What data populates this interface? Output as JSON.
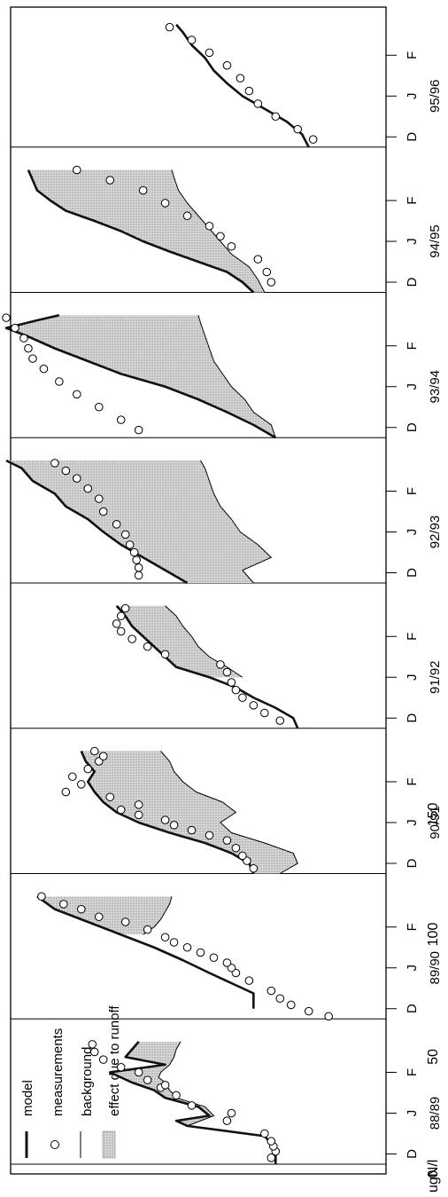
{
  "chart_data": {
    "type": "line",
    "orientation": "rotated-90-cw",
    "ylabel": "ugN/l",
    "ylim": [
      0,
      170
    ],
    "yticks": [
      0,
      50,
      100,
      150
    ],
    "month_ticks": [
      "D",
      "J",
      "F"
    ],
    "legend": {
      "model": "model",
      "measurements": "measurements",
      "background": "background",
      "runoff": "effect due to runoff"
    },
    "colors": {
      "model": "#111111",
      "shade": "#c8c8c8",
      "frame": "#000000"
    },
    "seasons": [
      {
        "label": "88/89",
        "model": [
          [
            0.0,
            50
          ],
          [
            0.08,
            50
          ],
          [
            0.16,
            52
          ],
          [
            0.22,
            55
          ],
          [
            0.3,
            90
          ],
          [
            0.34,
            95
          ],
          [
            0.38,
            80
          ],
          [
            0.45,
            85
          ],
          [
            0.52,
            100
          ],
          [
            0.58,
            105
          ],
          [
            0.64,
            115
          ],
          [
            0.68,
            120
          ],
          [
            0.72,
            125
          ],
          [
            0.78,
            100
          ],
          [
            0.84,
            118
          ],
          [
            0.9,
            115
          ],
          [
            0.96,
            112
          ]
        ],
        "background": [
          [
            0.3,
            90
          ],
          [
            0.38,
            78
          ],
          [
            0.45,
            82
          ],
          [
            0.52,
            95
          ],
          [
            0.58,
            98
          ],
          [
            0.64,
            100
          ],
          [
            0.68,
            103
          ],
          [
            0.72,
            102
          ],
          [
            0.78,
            98
          ],
          [
            0.84,
            96
          ],
          [
            0.9,
            95
          ],
          [
            0.96,
            93
          ]
        ],
        "measurements": [
          [
            0.05,
            52
          ],
          [
            0.1,
            50
          ],
          [
            0.14,
            51
          ],
          [
            0.18,
            52
          ],
          [
            0.24,
            55
          ],
          [
            0.34,
            72
          ],
          [
            0.4,
            70
          ],
          [
            0.46,
            88
          ],
          [
            0.54,
            95
          ],
          [
            0.6,
            102
          ],
          [
            0.62,
            100
          ],
          [
            0.66,
            108
          ],
          [
            0.72,
            112
          ],
          [
            0.76,
            120
          ],
          [
            0.82,
            128
          ],
          [
            0.88,
            132
          ],
          [
            0.94,
            133
          ]
        ]
      },
      {
        "label": "89/90",
        "model": [
          [
            0.08,
            60
          ],
          [
            0.14,
            60
          ],
          [
            0.2,
            60
          ],
          [
            0.28,
            70
          ],
          [
            0.36,
            80
          ],
          [
            0.46,
            92
          ],
          [
            0.56,
            105
          ],
          [
            0.66,
            120
          ],
          [
            0.76,
            135
          ],
          [
            0.86,
            150
          ],
          [
            0.96,
            158
          ]
        ],
        "background": [
          [
            0.66,
            110
          ],
          [
            0.72,
            105
          ],
          [
            0.78,
            102
          ],
          [
            0.84,
            100
          ],
          [
            0.9,
            98
          ],
          [
            0.96,
            97
          ]
        ],
        "measurements": [
          [
            0.02,
            26
          ],
          [
            0.06,
            35
          ],
          [
            0.11,
            43
          ],
          [
            0.16,
            48
          ],
          [
            0.22,
            52
          ],
          [
            0.3,
            62
          ],
          [
            0.36,
            68
          ],
          [
            0.4,
            70
          ],
          [
            0.44,
            72
          ],
          [
            0.48,
            78
          ],
          [
            0.52,
            84
          ],
          [
            0.56,
            90
          ],
          [
            0.6,
            96
          ],
          [
            0.64,
            100
          ],
          [
            0.7,
            108
          ],
          [
            0.76,
            118
          ],
          [
            0.8,
            130
          ],
          [
            0.86,
            138
          ],
          [
            0.9,
            146
          ],
          [
            0.96,
            156
          ]
        ]
      },
      {
        "label": "90/91",
        "model": [
          [
            0.0,
            60
          ],
          [
            0.08,
            62
          ],
          [
            0.16,
            70
          ],
          [
            0.24,
            82
          ],
          [
            0.32,
            98
          ],
          [
            0.4,
            112
          ],
          [
            0.48,
            122
          ],
          [
            0.56,
            128
          ],
          [
            0.64,
            132
          ],
          [
            0.72,
            135
          ],
          [
            0.8,
            132
          ],
          [
            0.88,
            136
          ],
          [
            0.96,
            138
          ]
        ],
        "background": [
          [
            0.0,
            48
          ],
          [
            0.08,
            40
          ],
          [
            0.16,
            42
          ],
          [
            0.24,
            55
          ],
          [
            0.32,
            70
          ],
          [
            0.4,
            75
          ],
          [
            0.48,
            68
          ],
          [
            0.56,
            74
          ],
          [
            0.64,
            86
          ],
          [
            0.72,
            92
          ],
          [
            0.8,
            96
          ],
          [
            0.88,
            98
          ],
          [
            0.96,
            102
          ]
        ],
        "measurements": [
          [
            0.04,
            60
          ],
          [
            0.1,
            63
          ],
          [
            0.14,
            65
          ],
          [
            0.2,
            68
          ],
          [
            0.26,
            72
          ],
          [
            0.3,
            80
          ],
          [
            0.34,
            88
          ],
          [
            0.38,
            96
          ],
          [
            0.42,
            100
          ],
          [
            0.46,
            112
          ],
          [
            0.5,
            120
          ],
          [
            0.54,
            112
          ],
          [
            0.6,
            125
          ],
          [
            0.64,
            145
          ],
          [
            0.7,
            138
          ],
          [
            0.76,
            142
          ],
          [
            0.82,
            135
          ],
          [
            0.88,
            130
          ],
          [
            0.92,
            128
          ],
          [
            0.96,
            132
          ]
        ]
      },
      {
        "label": "91/92",
        "model": [
          [
            0.0,
            40
          ],
          [
            0.08,
            42
          ],
          [
            0.16,
            50
          ],
          [
            0.24,
            60
          ],
          [
            0.32,
            68
          ],
          [
            0.4,
            80
          ],
          [
            0.48,
            95
          ],
          [
            0.56,
            100
          ],
          [
            0.64,
            105
          ],
          [
            0.72,
            110
          ],
          [
            0.8,
            115
          ],
          [
            0.88,
            118
          ],
          [
            0.96,
            122
          ]
        ],
        "background": [
          [
            0.4,
            65
          ],
          [
            0.48,
            72
          ],
          [
            0.56,
            80
          ],
          [
            0.64,
            85
          ],
          [
            0.72,
            88
          ],
          [
            0.8,
            92
          ],
          [
            0.88,
            95
          ],
          [
            0.96,
            100
          ]
        ],
        "measurements": [
          [
            0.06,
            48
          ],
          [
            0.12,
            55
          ],
          [
            0.18,
            60
          ],
          [
            0.24,
            65
          ],
          [
            0.3,
            68
          ],
          [
            0.36,
            70
          ],
          [
            0.44,
            72
          ],
          [
            0.5,
            75
          ],
          [
            0.58,
            100
          ],
          [
            0.64,
            108
          ],
          [
            0.7,
            115
          ],
          [
            0.76,
            120
          ],
          [
            0.82,
            122
          ],
          [
            0.88,
            120
          ],
          [
            0.94,
            118
          ]
        ]
      },
      {
        "label": "92/93",
        "model": [
          [
            0.0,
            90
          ],
          [
            0.1,
            100
          ],
          [
            0.2,
            110
          ],
          [
            0.3,
            120
          ],
          [
            0.4,
            128
          ],
          [
            0.5,
            135
          ],
          [
            0.6,
            145
          ],
          [
            0.7,
            150
          ],
          [
            0.8,
            160
          ],
          [
            0.9,
            165
          ],
          [
            0.96,
            172
          ]
        ],
        "background": [
          [
            0.0,
            60
          ],
          [
            0.1,
            65
          ],
          [
            0.2,
            52
          ],
          [
            0.3,
            58
          ],
          [
            0.4,
            66
          ],
          [
            0.5,
            70
          ],
          [
            0.6,
            75
          ],
          [
            0.7,
            78
          ],
          [
            0.8,
            80
          ],
          [
            0.9,
            82
          ],
          [
            0.96,
            84
          ]
        ],
        "measurements": [
          [
            0.06,
            112
          ],
          [
            0.12,
            112
          ],
          [
            0.18,
            113
          ],
          [
            0.24,
            114
          ],
          [
            0.3,
            116
          ],
          [
            0.38,
            118
          ],
          [
            0.46,
            122
          ],
          [
            0.56,
            128
          ],
          [
            0.66,
            130
          ],
          [
            0.74,
            135
          ],
          [
            0.82,
            140
          ],
          [
            0.88,
            145
          ],
          [
            0.94,
            150
          ]
        ]
      },
      {
        "label": "93/94",
        "model": [
          [
            0.0,
            50
          ],
          [
            0.1,
            60
          ],
          [
            0.2,
            72
          ],
          [
            0.3,
            85
          ],
          [
            0.4,
            100
          ],
          [
            0.5,
            120
          ],
          [
            0.6,
            135
          ],
          [
            0.7,
            150
          ],
          [
            0.8,
            163
          ],
          [
            0.86,
            172
          ],
          [
            0.92,
            158
          ],
          [
            0.96,
            148
          ]
        ],
        "background": [
          [
            0.0,
            50
          ],
          [
            0.1,
            52
          ],
          [
            0.2,
            60
          ],
          [
            0.3,
            64
          ],
          [
            0.4,
            70
          ],
          [
            0.5,
            74
          ],
          [
            0.6,
            78
          ],
          [
            0.7,
            80
          ],
          [
            0.8,
            82
          ],
          [
            0.9,
            84
          ],
          [
            0.96,
            85
          ]
        ],
        "measurements": [
          [
            0.06,
            112
          ],
          [
            0.14,
            120
          ],
          [
            0.24,
            130
          ],
          [
            0.34,
            140
          ],
          [
            0.44,
            148
          ],
          [
            0.54,
            155
          ],
          [
            0.62,
            160
          ],
          [
            0.7,
            162
          ],
          [
            0.78,
            164
          ],
          [
            0.86,
            168
          ],
          [
            0.94,
            172
          ]
        ]
      },
      {
        "label": "94/95",
        "model": [
          [
            0.0,
            60
          ],
          [
            0.08,
            65
          ],
          [
            0.16,
            72
          ],
          [
            0.24,
            85
          ],
          [
            0.32,
            98
          ],
          [
            0.4,
            110
          ],
          [
            0.48,
            120
          ],
          [
            0.56,
            132
          ],
          [
            0.64,
            145
          ],
          [
            0.72,
            152
          ],
          [
            0.8,
            158
          ],
          [
            0.88,
            160
          ],
          [
            0.96,
            162
          ]
        ],
        "background": [
          [
            0.0,
            55
          ],
          [
            0.1,
            58
          ],
          [
            0.2,
            62
          ],
          [
            0.3,
            70
          ],
          [
            0.4,
            75
          ],
          [
            0.5,
            80
          ],
          [
            0.6,
            85
          ],
          [
            0.7,
            90
          ],
          [
            0.8,
            94
          ],
          [
            0.9,
            96
          ],
          [
            0.96,
            97
          ]
        ],
        "measurements": [
          [
            0.08,
            52
          ],
          [
            0.16,
            54
          ],
          [
            0.26,
            58
          ],
          [
            0.36,
            70
          ],
          [
            0.44,
            75
          ],
          [
            0.52,
            80
          ],
          [
            0.6,
            90
          ],
          [
            0.7,
            100
          ],
          [
            0.8,
            110
          ],
          [
            0.88,
            125
          ],
          [
            0.96,
            140
          ]
        ]
      },
      {
        "label": "95/96",
        "model": [
          [
            0.0,
            35
          ],
          [
            0.1,
            38
          ],
          [
            0.2,
            45
          ],
          [
            0.3,
            55
          ],
          [
            0.4,
            65
          ],
          [
            0.5,
            72
          ],
          [
            0.6,
            78
          ],
          [
            0.7,
            82
          ],
          [
            0.8,
            88
          ],
          [
            0.9,
            92
          ],
          [
            0.96,
            95
          ]
        ],
        "background": [],
        "measurements": [
          [
            0.06,
            33
          ],
          [
            0.14,
            40
          ],
          [
            0.24,
            50
          ],
          [
            0.34,
            58
          ],
          [
            0.44,
            62
          ],
          [
            0.54,
            66
          ],
          [
            0.64,
            72
          ],
          [
            0.74,
            80
          ],
          [
            0.84,
            88
          ],
          [
            0.94,
            98
          ]
        ]
      }
    ]
  }
}
